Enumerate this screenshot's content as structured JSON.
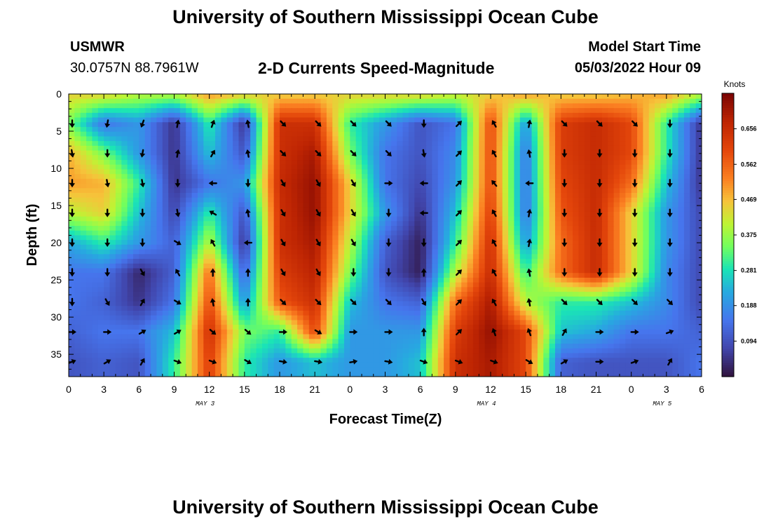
{
  "header": {
    "title": "University of Southern Mississippi Ocean Cube",
    "station_name": "USMWR",
    "station_coords": "30.0757N  88.7961W",
    "subtitle": "2-D Currents Speed-Magnitude",
    "model_start_label": "Model Start Time",
    "model_start_value": "05/03/2022 Hour 09"
  },
  "footer": {
    "title": "University of Southern Mississippi Ocean Cube"
  },
  "chart_data": {
    "type": "heatmap",
    "title": "2-D Currents Speed-Magnitude",
    "xlabel": "Forecast Time(Z)",
    "ylabel": "Depth (ft)",
    "x_hours_range": [
      0,
      54
    ],
    "y_range": [
      0,
      38
    ],
    "x_ticks": [
      {
        "hour": 0,
        "label": "0"
      },
      {
        "hour": 3,
        "label": "3"
      },
      {
        "hour": 6,
        "label": "6"
      },
      {
        "hour": 9,
        "label": "9"
      },
      {
        "hour": 12,
        "label": "12"
      },
      {
        "hour": 15,
        "label": "15"
      },
      {
        "hour": 18,
        "label": "18"
      },
      {
        "hour": 21,
        "label": "21"
      },
      {
        "hour": 24,
        "label": "0"
      },
      {
        "hour": 27,
        "label": "3"
      },
      {
        "hour": 30,
        "label": "6"
      },
      {
        "hour": 33,
        "label": "9"
      },
      {
        "hour": 36,
        "label": "12"
      },
      {
        "hour": 39,
        "label": "15"
      },
      {
        "hour": 42,
        "label": "18"
      },
      {
        "hour": 45,
        "label": "21"
      },
      {
        "hour": 48,
        "label": "0"
      },
      {
        "hour": 51,
        "label": "3"
      },
      {
        "hour": 54,
        "label": "6"
      }
    ],
    "y_ticks": [
      {
        "depth": 0,
        "label": "0"
      },
      {
        "depth": 5,
        "label": "5"
      },
      {
        "depth": 10,
        "label": "10"
      },
      {
        "depth": 15,
        "label": "15"
      },
      {
        "depth": 20,
        "label": "20"
      },
      {
        "depth": 25,
        "label": "25"
      },
      {
        "depth": 30,
        "label": "30"
      },
      {
        "depth": 35,
        "label": "35"
      }
    ],
    "date_labels": [
      {
        "hour": 12,
        "label": "MAY 3"
      },
      {
        "hour": 36,
        "label": "MAY 4"
      },
      {
        "hour": 51,
        "label": "MAY 5"
      }
    ],
    "colorbar": {
      "units": "Knots",
      "min": 0.0,
      "max": 0.75,
      "tick_values": [
        0.094,
        0.188,
        0.281,
        0.375,
        0.469,
        0.562,
        0.656
      ],
      "tick_labels": [
        "0.094",
        "0.188",
        "0.281",
        "0.375",
        "0.469",
        "0.562",
        "0.656"
      ]
    },
    "speed_grid": {
      "hours": [
        0,
        3,
        6,
        9,
        12,
        15,
        18,
        21,
        24,
        27,
        30,
        33,
        36,
        39,
        42,
        45,
        48,
        51,
        54
      ],
      "depths": [
        0,
        4,
        8,
        12,
        16,
        20,
        24,
        28,
        32,
        36
      ],
      "values": [
        [
          0.45,
          0.45,
          0.4,
          0.4,
          0.5,
          0.46,
          0.45,
          0.45,
          0.45,
          0.45,
          0.45,
          0.42,
          0.45,
          0.5,
          0.45,
          0.45,
          0.47,
          0.5,
          0.4
        ],
        [
          0.35,
          0.15,
          0.2,
          0.05,
          0.3,
          0.05,
          0.65,
          0.65,
          0.3,
          0.2,
          0.1,
          0.15,
          0.6,
          0.2,
          0.62,
          0.66,
          0.6,
          0.3,
          0.05
        ],
        [
          0.48,
          0.35,
          0.2,
          0.05,
          0.25,
          0.1,
          0.65,
          0.7,
          0.35,
          0.15,
          0.1,
          0.18,
          0.6,
          0.15,
          0.62,
          0.66,
          0.6,
          0.3,
          0.05
        ],
        [
          0.5,
          0.48,
          0.3,
          0.05,
          0.15,
          0.2,
          0.66,
          0.72,
          0.45,
          0.15,
          0.08,
          0.2,
          0.6,
          0.15,
          0.6,
          0.66,
          0.55,
          0.25,
          0.05
        ],
        [
          0.4,
          0.45,
          0.25,
          0.08,
          0.3,
          0.1,
          0.65,
          0.72,
          0.45,
          0.2,
          0.05,
          0.25,
          0.62,
          0.15,
          0.58,
          0.66,
          0.45,
          0.2,
          0.08
        ],
        [
          0.22,
          0.3,
          0.2,
          0.12,
          0.4,
          0.05,
          0.65,
          0.7,
          0.4,
          0.12,
          0.02,
          0.3,
          0.65,
          0.2,
          0.55,
          0.66,
          0.45,
          0.2,
          0.08
        ],
        [
          0.15,
          0.15,
          0.03,
          0.12,
          0.55,
          0.12,
          0.62,
          0.68,
          0.35,
          0.1,
          0.02,
          0.4,
          0.66,
          0.3,
          0.55,
          0.66,
          0.45,
          0.18,
          0.08
        ],
        [
          0.15,
          0.12,
          0.05,
          0.15,
          0.6,
          0.2,
          0.58,
          0.65,
          0.25,
          0.15,
          0.12,
          0.55,
          0.7,
          0.4,
          0.3,
          0.3,
          0.25,
          0.18,
          0.08
        ],
        [
          0.12,
          0.15,
          0.15,
          0.25,
          0.65,
          0.35,
          0.3,
          0.6,
          0.2,
          0.2,
          0.2,
          0.62,
          0.72,
          0.6,
          0.25,
          0.22,
          0.15,
          0.15,
          0.12
        ],
        [
          0.1,
          0.12,
          0.1,
          0.3,
          0.62,
          0.3,
          0.2,
          0.25,
          0.2,
          0.2,
          0.25,
          0.65,
          0.7,
          0.6,
          0.12,
          0.1,
          0.1,
          0.1,
          0.15
        ]
      ]
    },
    "current_vectors": {
      "hours": [
        0,
        3,
        6,
        9,
        12,
        15,
        18,
        21,
        24,
        27,
        30,
        33,
        36,
        39,
        42,
        45,
        48,
        51,
        54
      ],
      "depths": [
        4,
        8,
        12,
        16,
        20,
        24,
        28,
        32,
        36
      ],
      "angles_deg": [
        [
          90,
          100,
          110,
          -80,
          -70,
          -100,
          45,
          45,
          45,
          45,
          90,
          -45,
          -120,
          -80,
          45,
          45,
          45,
          90,
          -100
        ],
        [
          80,
          90,
          100,
          -80,
          -60,
          -100,
          45,
          45,
          45,
          45,
          80,
          -45,
          -120,
          -100,
          90,
          90,
          90,
          90,
          -100
        ],
        [
          90,
          80,
          80,
          90,
          180,
          90,
          60,
          60,
          60,
          0,
          180,
          -45,
          -130,
          180,
          90,
          90,
          90,
          90,
          90
        ],
        [
          90,
          90,
          90,
          80,
          -150,
          -100,
          60,
          60,
          60,
          90,
          180,
          -45,
          -120,
          -80,
          90,
          90,
          90,
          90,
          90
        ],
        [
          90,
          90,
          90,
          30,
          -120,
          180,
          60,
          60,
          60,
          90,
          90,
          -45,
          -120,
          -80,
          90,
          90,
          90,
          90,
          -150
        ],
        [
          90,
          90,
          60,
          -120,
          -90,
          -90,
          60,
          60,
          90,
          90,
          -90,
          -45,
          -120,
          -100,
          90,
          90,
          90,
          90,
          180
        ],
        [
          90,
          60,
          -60,
          30,
          -100,
          -90,
          45,
          45,
          45,
          45,
          60,
          -45,
          -120,
          -100,
          45,
          45,
          45,
          45,
          90
        ],
        [
          0,
          0,
          -30,
          -30,
          40,
          40,
          0,
          30,
          0,
          0,
          -90,
          -45,
          -110,
          -110,
          -60,
          0,
          0,
          -20,
          -60
        ],
        [
          -20,
          -30,
          -60,
          20,
          20,
          30,
          10,
          10,
          -10,
          10,
          20,
          20,
          20,
          30,
          -30,
          0,
          -20,
          -60,
          -60
        ]
      ]
    }
  }
}
